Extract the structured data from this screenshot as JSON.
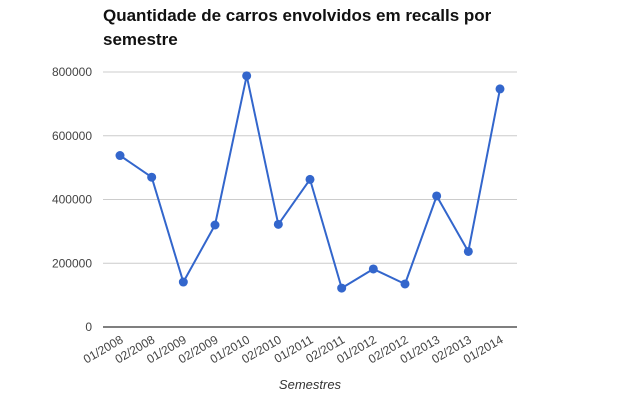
{
  "chart_data": {
    "type": "line",
    "title": "Quantidade de carros envolvidos em recalls por semestre",
    "xlabel": "Semestres",
    "ylabel": "",
    "categories": [
      "01/2008",
      "02/2008",
      "01/2009",
      "02/2009",
      "01/2010",
      "02/2010",
      "01/2011",
      "02/2011",
      "01/2012",
      "02/2012",
      "01/2013",
      "02/2013",
      "01/2014"
    ],
    "series": [
      {
        "values": [
          538000,
          470000,
          141000,
          320000,
          788000,
          322000,
          463000,
          122000,
          182000,
          135000,
          411000,
          237000,
          747000
        ]
      }
    ],
    "ylim": [
      0,
      800000
    ],
    "yticks": [
      0,
      200000,
      400000,
      600000,
      800000
    ],
    "ytick_labels": [
      "0",
      "200000",
      "400000",
      "600000",
      "800000"
    ],
    "grid": true,
    "legend": "none",
    "colors": {
      "line": "#3366cc",
      "grid": "#cccccc",
      "axis": "#333333"
    }
  }
}
